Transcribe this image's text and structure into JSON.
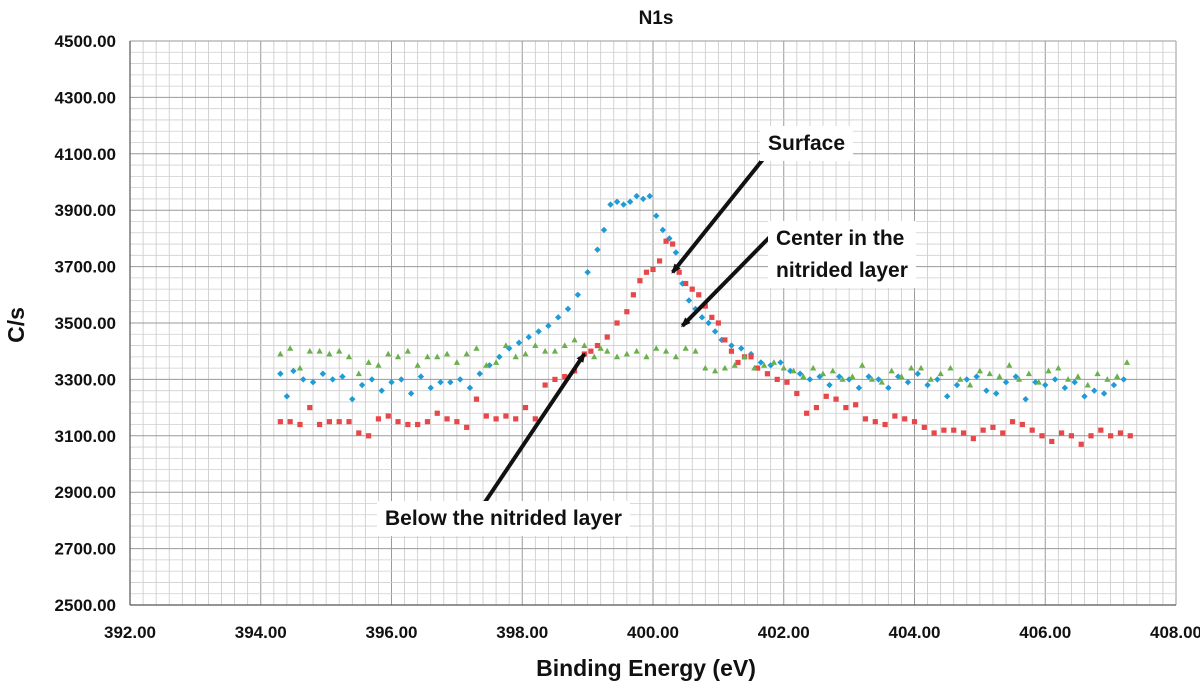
{
  "chart_data": {
    "type": "scatter",
    "title": "N1s",
    "xlabel": "Binding Energy (eV)",
    "ylabel": "C/s",
    "xlim": [
      392,
      408
    ],
    "ylim": [
      2500,
      4500
    ],
    "x_ticks": [
      "392.00",
      "394.00",
      "396.00",
      "398.00",
      "400.00",
      "402.00",
      "404.00",
      "406.00",
      "408.00"
    ],
    "y_ticks": [
      "2500.00",
      "2700.00",
      "2900.00",
      "3100.00",
      "3300.00",
      "3500.00",
      "3700.00",
      "3900.00",
      "4100.00",
      "4300.00",
      "4500.00"
    ],
    "grid": true,
    "series": [
      {
        "color": "#1f9bd6",
        "marker": "diamond",
        "points": [
          [
            394.3,
            3320
          ],
          [
            394.4,
            3240
          ],
          [
            394.5,
            3330
          ],
          [
            394.65,
            3300
          ],
          [
            394.8,
            3290
          ],
          [
            394.95,
            3320
          ],
          [
            395.1,
            3300
          ],
          [
            395.25,
            3310
          ],
          [
            395.4,
            3230
          ],
          [
            395.55,
            3280
          ],
          [
            395.7,
            3300
          ],
          [
            395.85,
            3260
          ],
          [
            396.0,
            3290
          ],
          [
            396.15,
            3300
          ],
          [
            396.3,
            3250
          ],
          [
            396.45,
            3310
          ],
          [
            396.6,
            3270
          ],
          [
            396.75,
            3290
          ],
          [
            396.9,
            3290
          ],
          [
            397.05,
            3300
          ],
          [
            397.2,
            3270
          ],
          [
            397.35,
            3320
          ],
          [
            397.5,
            3350
          ],
          [
            397.65,
            3380
          ],
          [
            397.8,
            3410
          ],
          [
            397.95,
            3430
          ],
          [
            398.1,
            3450
          ],
          [
            398.25,
            3470
          ],
          [
            398.4,
            3490
          ],
          [
            398.55,
            3520
          ],
          [
            398.7,
            3550
          ],
          [
            398.85,
            3600
          ],
          [
            399.0,
            3680
          ],
          [
            399.15,
            3760
          ],
          [
            399.25,
            3830
          ],
          [
            399.35,
            3920
          ],
          [
            399.45,
            3930
          ],
          [
            399.55,
            3920
          ],
          [
            399.65,
            3930
          ],
          [
            399.75,
            3950
          ],
          [
            399.85,
            3940
          ],
          [
            399.95,
            3950
          ],
          [
            400.05,
            3880
          ],
          [
            400.15,
            3830
          ],
          [
            400.25,
            3800
          ],
          [
            400.35,
            3750
          ],
          [
            400.45,
            3640
          ],
          [
            400.55,
            3580
          ],
          [
            400.65,
            3550
          ],
          [
            400.75,
            3520
          ],
          [
            400.85,
            3500
          ],
          [
            400.95,
            3470
          ],
          [
            401.05,
            3440
          ],
          [
            401.2,
            3420
          ],
          [
            401.35,
            3410
          ],
          [
            401.5,
            3390
          ],
          [
            401.65,
            3360
          ],
          [
            401.8,
            3350
          ],
          [
            401.95,
            3360
          ],
          [
            402.1,
            3330
          ],
          [
            402.25,
            3320
          ],
          [
            402.4,
            3300
          ],
          [
            402.55,
            3310
          ],
          [
            402.7,
            3280
          ],
          [
            402.85,
            3310
          ],
          [
            403.0,
            3300
          ],
          [
            403.15,
            3270
          ],
          [
            403.3,
            3310
          ],
          [
            403.45,
            3300
          ],
          [
            403.6,
            3270
          ],
          [
            403.75,
            3310
          ],
          [
            403.9,
            3290
          ],
          [
            404.05,
            3320
          ],
          [
            404.2,
            3280
          ],
          [
            404.35,
            3300
          ],
          [
            404.5,
            3240
          ],
          [
            404.65,
            3280
          ],
          [
            404.8,
            3300
          ],
          [
            404.95,
            3310
          ],
          [
            405.1,
            3260
          ],
          [
            405.25,
            3250
          ],
          [
            405.4,
            3290
          ],
          [
            405.55,
            3310
          ],
          [
            405.7,
            3230
          ],
          [
            405.85,
            3290
          ],
          [
            406.0,
            3280
          ],
          [
            406.15,
            3300
          ],
          [
            406.3,
            3270
          ],
          [
            406.45,
            3290
          ],
          [
            406.6,
            3240
          ],
          [
            406.75,
            3260
          ],
          [
            406.9,
            3250
          ],
          [
            407.05,
            3280
          ],
          [
            407.2,
            3300
          ]
        ]
      },
      {
        "color": "#e8474a",
        "marker": "square",
        "points": [
          [
            394.3,
            3150
          ],
          [
            394.45,
            3150
          ],
          [
            394.6,
            3140
          ],
          [
            394.75,
            3200
          ],
          [
            394.9,
            3140
          ],
          [
            395.05,
            3150
          ],
          [
            395.2,
            3150
          ],
          [
            395.35,
            3150
          ],
          [
            395.5,
            3110
          ],
          [
            395.65,
            3100
          ],
          [
            395.8,
            3160
          ],
          [
            395.95,
            3170
          ],
          [
            396.1,
            3150
          ],
          [
            396.25,
            3140
          ],
          [
            396.4,
            3140
          ],
          [
            396.55,
            3150
          ],
          [
            396.7,
            3180
          ],
          [
            396.85,
            3160
          ],
          [
            397.0,
            3150
          ],
          [
            397.15,
            3130
          ],
          [
            397.3,
            3230
          ],
          [
            397.45,
            3170
          ],
          [
            397.6,
            3160
          ],
          [
            397.75,
            3170
          ],
          [
            397.9,
            3160
          ],
          [
            398.05,
            3200
          ],
          [
            398.2,
            3160
          ],
          [
            398.35,
            3280
          ],
          [
            398.5,
            3300
          ],
          [
            398.65,
            3310
          ],
          [
            398.8,
            3330
          ],
          [
            398.95,
            3390
          ],
          [
            399.05,
            3400
          ],
          [
            399.15,
            3420
          ],
          [
            399.3,
            3450
          ],
          [
            399.45,
            3500
          ],
          [
            399.6,
            3540
          ],
          [
            399.7,
            3600
          ],
          [
            399.8,
            3650
          ],
          [
            399.9,
            3680
          ],
          [
            400.0,
            3690
          ],
          [
            400.1,
            3720
          ],
          [
            400.2,
            3790
          ],
          [
            400.3,
            3780
          ],
          [
            400.4,
            3680
          ],
          [
            400.5,
            3640
          ],
          [
            400.6,
            3620
          ],
          [
            400.7,
            3600
          ],
          [
            400.8,
            3560
          ],
          [
            400.9,
            3520
          ],
          [
            401.0,
            3500
          ],
          [
            401.1,
            3440
          ],
          [
            401.2,
            3400
          ],
          [
            401.3,
            3360
          ],
          [
            401.4,
            3380
          ],
          [
            401.5,
            3380
          ],
          [
            401.6,
            3340
          ],
          [
            401.75,
            3320
          ],
          [
            401.9,
            3300
          ],
          [
            402.05,
            3290
          ],
          [
            402.2,
            3250
          ],
          [
            402.35,
            3180
          ],
          [
            402.5,
            3200
          ],
          [
            402.65,
            3240
          ],
          [
            402.8,
            3230
          ],
          [
            402.95,
            3200
          ],
          [
            403.1,
            3210
          ],
          [
            403.25,
            3160
          ],
          [
            403.4,
            3150
          ],
          [
            403.55,
            3140
          ],
          [
            403.7,
            3170
          ],
          [
            403.85,
            3160
          ],
          [
            404.0,
            3150
          ],
          [
            404.15,
            3130
          ],
          [
            404.3,
            3110
          ],
          [
            404.45,
            3120
          ],
          [
            404.6,
            3120
          ],
          [
            404.75,
            3110
          ],
          [
            404.9,
            3090
          ],
          [
            405.05,
            3120
          ],
          [
            405.2,
            3130
          ],
          [
            405.35,
            3110
          ],
          [
            405.5,
            3150
          ],
          [
            405.65,
            3140
          ],
          [
            405.8,
            3120
          ],
          [
            405.95,
            3100
          ],
          [
            406.1,
            3080
          ],
          [
            406.25,
            3110
          ],
          [
            406.4,
            3100
          ],
          [
            406.55,
            3070
          ],
          [
            406.7,
            3100
          ],
          [
            406.85,
            3120
          ],
          [
            407.0,
            3100
          ],
          [
            407.15,
            3110
          ],
          [
            407.3,
            3100
          ]
        ]
      },
      {
        "color": "#6ab04c",
        "marker": "triangle",
        "points": [
          [
            394.3,
            3390
          ],
          [
            394.45,
            3410
          ],
          [
            394.6,
            3340
          ],
          [
            394.75,
            3400
          ],
          [
            394.9,
            3400
          ],
          [
            395.05,
            3390
          ],
          [
            395.2,
            3400
          ],
          [
            395.35,
            3380
          ],
          [
            395.5,
            3320
          ],
          [
            395.65,
            3360
          ],
          [
            395.8,
            3350
          ],
          [
            395.95,
            3390
          ],
          [
            396.1,
            3380
          ],
          [
            396.25,
            3400
          ],
          [
            396.4,
            3350
          ],
          [
            396.55,
            3380
          ],
          [
            396.7,
            3380
          ],
          [
            396.85,
            3390
          ],
          [
            397.0,
            3360
          ],
          [
            397.15,
            3390
          ],
          [
            397.3,
            3410
          ],
          [
            397.45,
            3350
          ],
          [
            397.6,
            3360
          ],
          [
            397.75,
            3420
          ],
          [
            397.9,
            3380
          ],
          [
            398.05,
            3390
          ],
          [
            398.2,
            3420
          ],
          [
            398.35,
            3400
          ],
          [
            398.5,
            3400
          ],
          [
            398.65,
            3420
          ],
          [
            398.8,
            3440
          ],
          [
            398.95,
            3420
          ],
          [
            399.1,
            3380
          ],
          [
            399.2,
            3410
          ],
          [
            399.3,
            3400
          ],
          [
            399.45,
            3380
          ],
          [
            399.6,
            3390
          ],
          [
            399.75,
            3400
          ],
          [
            399.9,
            3380
          ],
          [
            400.05,
            3410
          ],
          [
            400.2,
            3400
          ],
          [
            400.35,
            3380
          ],
          [
            400.5,
            3410
          ],
          [
            400.65,
            3400
          ],
          [
            400.8,
            3340
          ],
          [
            400.95,
            3330
          ],
          [
            401.1,
            3340
          ],
          [
            401.25,
            3350
          ],
          [
            401.4,
            3380
          ],
          [
            401.55,
            3340
          ],
          [
            401.7,
            3350
          ],
          [
            401.85,
            3360
          ],
          [
            402.0,
            3340
          ],
          [
            402.15,
            3330
          ],
          [
            402.3,
            3310
          ],
          [
            402.45,
            3340
          ],
          [
            402.6,
            3320
          ],
          [
            402.75,
            3330
          ],
          [
            402.9,
            3300
          ],
          [
            403.05,
            3310
          ],
          [
            403.2,
            3350
          ],
          [
            403.35,
            3300
          ],
          [
            403.5,
            3290
          ],
          [
            403.65,
            3330
          ],
          [
            403.8,
            3310
          ],
          [
            403.95,
            3340
          ],
          [
            404.1,
            3340
          ],
          [
            404.25,
            3300
          ],
          [
            404.4,
            3320
          ],
          [
            404.55,
            3340
          ],
          [
            404.7,
            3300
          ],
          [
            404.85,
            3280
          ],
          [
            405.0,
            3330
          ],
          [
            405.15,
            3320
          ],
          [
            405.3,
            3310
          ],
          [
            405.45,
            3350
          ],
          [
            405.6,
            3300
          ],
          [
            405.75,
            3320
          ],
          [
            405.9,
            3290
          ],
          [
            406.05,
            3330
          ],
          [
            406.2,
            3340
          ],
          [
            406.35,
            3300
          ],
          [
            406.5,
            3310
          ],
          [
            406.65,
            3280
          ],
          [
            406.8,
            3320
          ],
          [
            406.95,
            3300
          ],
          [
            407.1,
            3310
          ],
          [
            407.25,
            3360
          ]
        ]
      }
    ],
    "annotations": [
      {
        "text": "Surface",
        "lines": [
          "Surface"
        ],
        "tail": [
          401.75,
          4100
        ],
        "head": [
          400.3,
          3680
        ]
      },
      {
        "text": "Center in the nitrided layer",
        "lines": [
          "Center in the",
          "nitrided layer"
        ],
        "tail": [
          401.85,
          3820
        ],
        "head": [
          400.45,
          3490
        ]
      },
      {
        "text": "Below the nitrided layer",
        "lines": [
          "Below the nitrided layer"
        ],
        "tail": [
          397.3,
          2820
        ],
        "head": [
          398.95,
          3390
        ]
      }
    ]
  }
}
